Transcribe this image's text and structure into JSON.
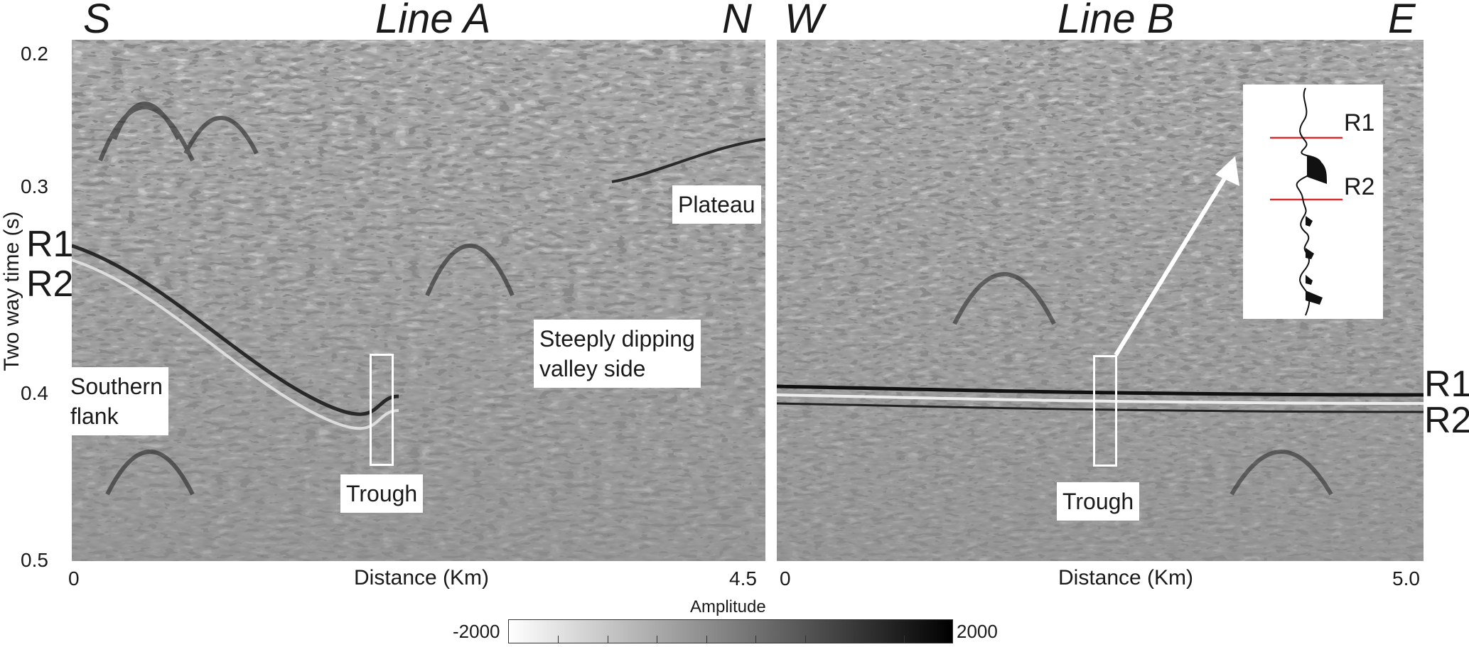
{
  "line_a": {
    "title": "Line A",
    "dir_left": "S",
    "dir_right": "N",
    "x_start": "0",
    "x_end": "4.5",
    "x_label": "Distance (Km)",
    "annotations": {
      "southern_flank": "Southern\nflank",
      "trough": "Trough",
      "steeply_dipping": "Steeply dipping\nvalley side",
      "plateau": "Plateau"
    },
    "reflector_labels": [
      "R1",
      "R2"
    ]
  },
  "line_b": {
    "title": "Line B",
    "dir_left": "W",
    "dir_right": "E",
    "x_start": "0",
    "x_end": "5.0",
    "x_label": "Distance (Km)",
    "annotations": {
      "trough": "Trough"
    },
    "reflector_labels": [
      "R1",
      "R2"
    ],
    "inset_labels": [
      "R1",
      "R2"
    ]
  },
  "y_axis": {
    "label": "Two way time (s)",
    "ticks": [
      "0.2",
      "0.3",
      "0.4",
      "0.5"
    ]
  },
  "colorbar": {
    "title": "Amplitude",
    "min_label": "-2000",
    "max_label": "2000"
  },
  "colors": {
    "background": "#ffffff",
    "seismic_mid": "#8a8a8a",
    "inset_marker": "#d62d2d",
    "outline": "#ffffff"
  }
}
